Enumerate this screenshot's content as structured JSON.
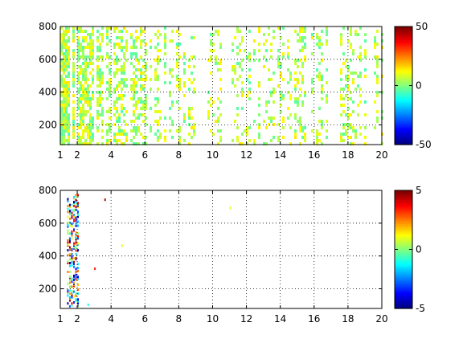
{
  "chart_data": [
    {
      "type": "heatmap",
      "panel": "top",
      "xlim": [
        1,
        20
      ],
      "ylim": [
        80,
        800
      ],
      "x_ticks": [
        1,
        2,
        4,
        6,
        8,
        10,
        12,
        14,
        16,
        18,
        20
      ],
      "y_ticks": [
        200,
        400,
        600,
        800
      ],
      "grid": true,
      "colorbar": {
        "range": [
          -50,
          50
        ],
        "ticks": [
          -50,
          0,
          50
        ],
        "colormap": "jet"
      },
      "typical_values": [
        -5,
        15
      ],
      "density_by_x": [
        {
          "x": 1,
          "density": 0.85
        },
        {
          "x": 2,
          "density": 0.75
        },
        {
          "x": 3,
          "density": 0.6
        },
        {
          "x": 4,
          "density": 0.5
        },
        {
          "x": 6,
          "density": 0.35
        },
        {
          "x": 8,
          "density": 0.3
        },
        {
          "x": 12,
          "density": 0.2
        },
        {
          "x": 16,
          "density": 0.3
        },
        {
          "x": 20,
          "density": 0.25
        }
      ]
    },
    {
      "type": "heatmap",
      "panel": "bottom",
      "xlim": [
        1,
        20
      ],
      "ylim": [
        80,
        800
      ],
      "x_ticks": [
        1,
        2,
        4,
        6,
        8,
        10,
        12,
        14,
        16,
        18,
        20
      ],
      "y_ticks": [
        200,
        400,
        600,
        800
      ],
      "grid": true,
      "colorbar": {
        "range": [
          -5,
          5
        ],
        "ticks": [
          -5,
          0,
          5
        ],
        "colormap": "jet"
      },
      "value_range_observed": [
        -5,
        5
      ],
      "dense_region": {
        "x": [
          1.4,
          2.1
        ],
        "y": [
          100,
          780
        ]
      },
      "sparse_points": [
        {
          "x": 3.6,
          "y": 750,
          "value": 4.5
        },
        {
          "x": 3.0,
          "y": 330,
          "value": 3.5
        },
        {
          "x": 2.6,
          "y": 110,
          "value": -1
        },
        {
          "x": 4.6,
          "y": 470,
          "value": 1
        },
        {
          "x": 11.0,
          "y": 700,
          "value": 1
        }
      ]
    }
  ]
}
